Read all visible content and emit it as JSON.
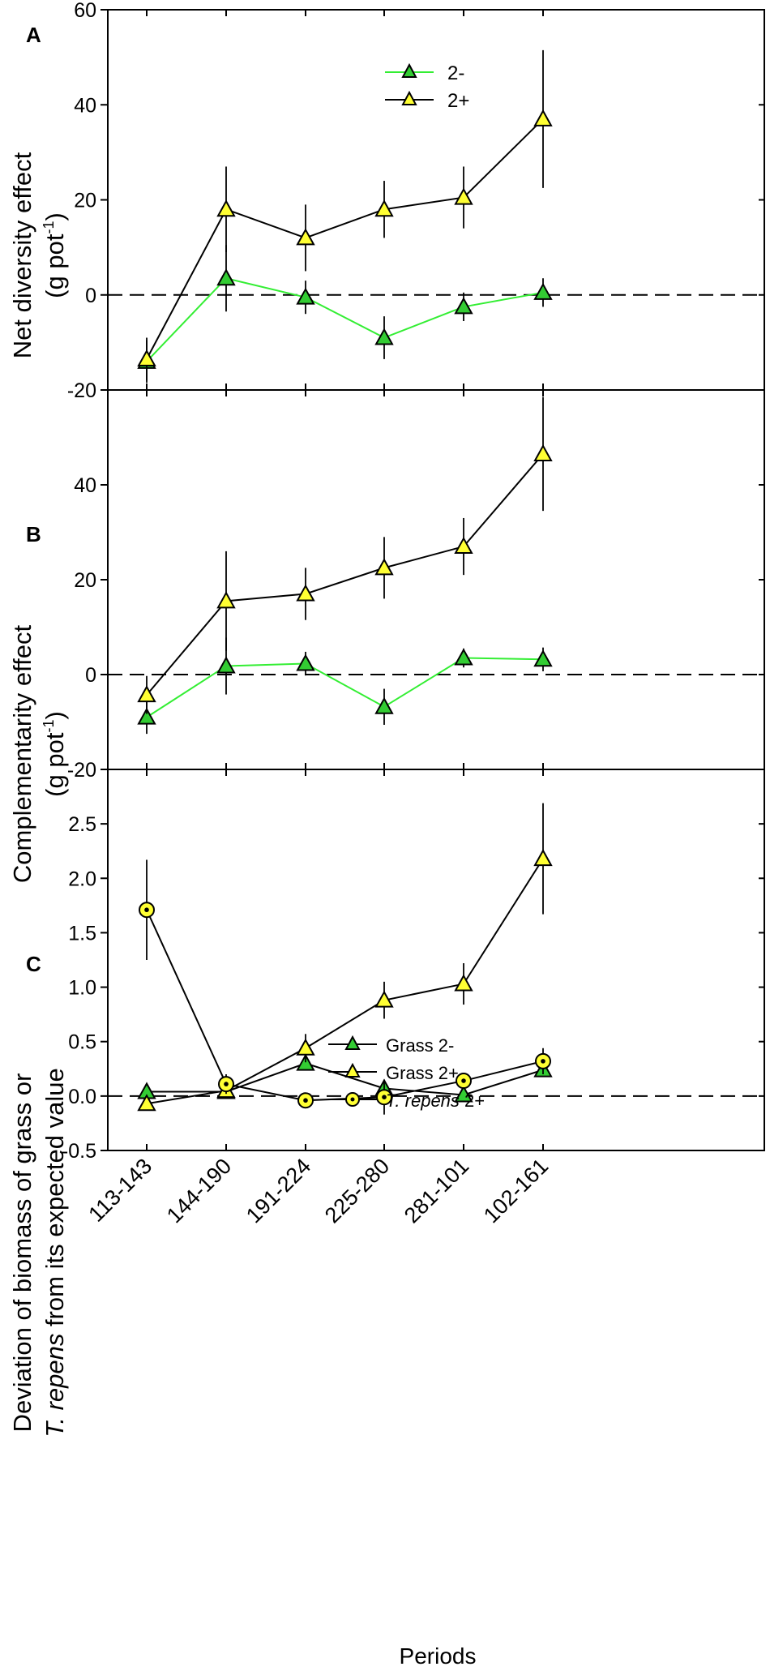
{
  "figure": {
    "xlabel": "Periods",
    "categories": [
      "113-143",
      "144-190",
      "191-224",
      "225-280",
      "281-101",
      "102-161"
    ]
  },
  "colors": {
    "green": "#33cc33",
    "yellow": "#ffff33",
    "line_green": "#33ee33",
    "line_black": "#000000"
  },
  "chart_data": [
    {
      "type": "line",
      "panel_label": "A",
      "ylabel_lines": [
        "Net diversity effect",
        "(g pot-1)"
      ],
      "ylabel_line1": "Net diversity effect",
      "ylabel_unit": "(g pot",
      "ylabel_sup": "-1",
      "ylabel_close": ")",
      "ylim": [
        -20,
        60
      ],
      "yticks": [
        -20,
        0,
        20,
        40,
        60
      ],
      "ytick_labels": [
        "-20",
        "0",
        "20",
        "40",
        "60"
      ],
      "reference_line": 0,
      "legend": [
        "2-",
        "2+"
      ],
      "categories": [
        "113-143",
        "144-190",
        "191-224",
        "225-280",
        "281-101",
        "102-161"
      ],
      "series": [
        {
          "name": "2-",
          "marker": "triangle",
          "color": "#33cc33",
          "line": "#33ee33",
          "values": [
            -14,
            3.5,
            -0.5,
            -9,
            -2.5,
            0.5
          ],
          "err": [
            4.5,
            7,
            3.5,
            4.5,
            3,
            3
          ]
        },
        {
          "name": "2+",
          "marker": "triangle",
          "color": "#ffff33",
          "line": "#000000",
          "values": [
            -13.5,
            18,
            12,
            18,
            20.5,
            37
          ],
          "err": [
            4.5,
            9,
            7,
            6,
            6.5,
            14.5
          ]
        }
      ]
    },
    {
      "type": "line",
      "panel_label": "B",
      "ylabel_lines": [
        "Complementarity effect",
        "(g pot-1)"
      ],
      "ylabel_line1": "Complementarity effect",
      "ylabel_unit": "(g pot",
      "ylabel_sup": "-1",
      "ylabel_close": ")",
      "ylim": [
        -20,
        60
      ],
      "yticks": [
        -20,
        0,
        20,
        40
      ],
      "ytick_labels": [
        "-20",
        "0",
        "20",
        "40"
      ],
      "reference_line": 0,
      "categories": [
        "113-143",
        "144-190",
        "191-224",
        "225-280",
        "281-101",
        "102-161"
      ],
      "series": [
        {
          "name": "2-",
          "marker": "triangle",
          "color": "#33cc33",
          "line": "#33ee33",
          "values": [
            -9,
            1.8,
            2.3,
            -6.8,
            3.5,
            3.2
          ],
          "err": [
            3.5,
            6,
            2.5,
            3.8,
            2,
            2.5
          ]
        },
        {
          "name": "2+",
          "marker": "triangle",
          "color": "#ffff33",
          "line": "#000000",
          "values": [
            -4.3,
            15.5,
            17,
            22.5,
            27,
            46.5
          ],
          "err": [
            4,
            10.5,
            5.5,
            6.5,
            6,
            12
          ]
        }
      ]
    },
    {
      "type": "line",
      "panel_label": "C",
      "ylabel_lines": [
        "Deviation of biomass of grass or",
        "T. repens from its expected value"
      ],
      "ylabel_line1": "Deviation of biomass of grass or",
      "ylabel_italic": "T. repens",
      "ylabel_rest": " from its expected value",
      "ylim": [
        -0.5,
        3.0
      ],
      "yticks": [
        -0.5,
        0.0,
        0.5,
        1.0,
        1.5,
        2.0,
        2.5
      ],
      "ytick_labels": [
        "-0.5",
        "0.0",
        "0.5",
        "1.0",
        "1.5",
        "2.0",
        "2.5"
      ],
      "reference_line": 0,
      "legend": [
        "Grass 2-",
        "Grass 2+",
        "T. repens 2+"
      ],
      "legend_c1": "Grass 2-",
      "legend_c2": "Grass 2+",
      "legend_c3_italic": "T. repens",
      "legend_c3_rest": " 2+",
      "categories": [
        "113-143",
        "144-190",
        "191-224",
        "225-280",
        "281-101",
        "102-161"
      ],
      "series": [
        {
          "name": "Grass 2-",
          "marker": "triangle",
          "color": "#33cc33",
          "line": "#000000",
          "values": [
            0.04,
            0.04,
            0.3,
            0.07,
            0.01,
            0.24
          ],
          "err": [
            0.03,
            0.04,
            0.06,
            0.04,
            0.03,
            0.06
          ]
        },
        {
          "name": "Grass 2+",
          "marker": "triangle",
          "color": "#ffff33",
          "line": "#000000",
          "values": [
            -0.07,
            0.05,
            0.44,
            0.88,
            1.03,
            2.18
          ],
          "err": [
            0.06,
            0.05,
            0.13,
            0.17,
            0.19,
            0.51
          ]
        },
        {
          "name": "T. repens 2+",
          "marker": "circle",
          "color": "#ffff33",
          "line": "#000000",
          "values": [
            1.71,
            0.11,
            -0.04,
            -0.01,
            0.14,
            0.32
          ],
          "err": [
            0.46,
            0.09,
            0.07,
            0.16,
            0.07,
            0.12
          ]
        }
      ]
    }
  ]
}
